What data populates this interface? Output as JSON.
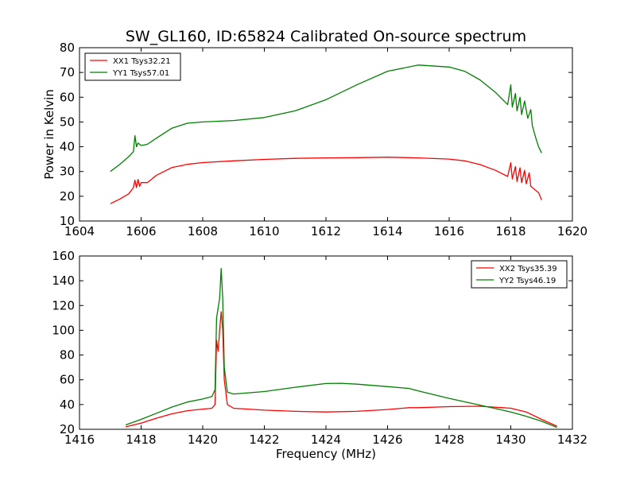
{
  "chart_data": [
    {
      "type": "line",
      "title": "SW_GL160, ID:65824 Calibrated On-source spectrum",
      "xlabel": "",
      "ylabel": "Power in Kelvin",
      "xlim": [
        1604,
        1620
      ],
      "ylim": [
        10,
        80
      ],
      "xticks": [
        1604,
        1606,
        1608,
        1610,
        1612,
        1614,
        1616,
        1618,
        1620
      ],
      "yticks": [
        10,
        20,
        30,
        40,
        50,
        60,
        70,
        80
      ],
      "legend_position": "upper-left",
      "series": [
        {
          "name": "XX1 Tsys32.21",
          "color": "#ff0000",
          "points": [
            [
              1605.0,
              17.0
            ],
            [
              1605.3,
              18.8
            ],
            [
              1605.6,
              21.0
            ],
            [
              1605.75,
              23.5
            ],
            [
              1605.8,
              26.5
            ],
            [
              1605.85,
              23.5
            ],
            [
              1605.9,
              26.8
            ],
            [
              1605.95,
              24.0
            ],
            [
              1606.0,
              25.5
            ],
            [
              1606.2,
              25.5
            ],
            [
              1606.5,
              28.5
            ],
            [
              1607.0,
              31.6
            ],
            [
              1607.5,
              32.9
            ],
            [
              1608.0,
              33.6
            ],
            [
              1609.0,
              34.3
            ],
            [
              1610.0,
              34.9
            ],
            [
              1611.0,
              35.3
            ],
            [
              1612.0,
              35.5
            ],
            [
              1613.0,
              35.6
            ],
            [
              1614.0,
              35.8
            ],
            [
              1615.0,
              35.5
            ],
            [
              1616.0,
              35.0
            ],
            [
              1616.5,
              34.3
            ],
            [
              1617.0,
              32.8
            ],
            [
              1617.5,
              30.5
            ],
            [
              1617.9,
              28.0
            ],
            [
              1618.0,
              33.5
            ],
            [
              1618.05,
              27.0
            ],
            [
              1618.15,
              32.0
            ],
            [
              1618.2,
              26.0
            ],
            [
              1618.3,
              31.5
            ],
            [
              1618.35,
              25.5
            ],
            [
              1618.45,
              30.5
            ],
            [
              1618.5,
              25.0
            ],
            [
              1618.6,
              29.5
            ],
            [
              1618.65,
              24.0
            ],
            [
              1618.8,
              22.5
            ],
            [
              1618.9,
              21.5
            ],
            [
              1619.0,
              18.5
            ]
          ]
        },
        {
          "name": "YY1 Tsys57.01",
          "color": "#008000",
          "points": [
            [
              1605.0,
              30.0
            ],
            [
              1605.3,
              32.8
            ],
            [
              1605.6,
              36.0
            ],
            [
              1605.75,
              38.0
            ],
            [
              1605.8,
              44.5
            ],
            [
              1605.85,
              40.0
            ],
            [
              1605.9,
              41.5
            ],
            [
              1606.0,
              40.5
            ],
            [
              1606.2,
              41.0
            ],
            [
              1606.5,
              43.5
            ],
            [
              1607.0,
              47.5
            ],
            [
              1607.5,
              49.5
            ],
            [
              1608.0,
              50.0
            ],
            [
              1609.0,
              50.6
            ],
            [
              1610.0,
              51.8
            ],
            [
              1611.0,
              54.5
            ],
            [
              1612.0,
              59.0
            ],
            [
              1613.0,
              65.0
            ],
            [
              1614.0,
              70.5
            ],
            [
              1615.0,
              73.0
            ],
            [
              1616.0,
              72.2
            ],
            [
              1616.5,
              70.5
            ],
            [
              1617.0,
              67.0
            ],
            [
              1617.5,
              62.0
            ],
            [
              1617.9,
              57.0
            ],
            [
              1618.0,
              65.0
            ],
            [
              1618.05,
              56.0
            ],
            [
              1618.15,
              61.5
            ],
            [
              1618.2,
              54.5
            ],
            [
              1618.3,
              60.0
            ],
            [
              1618.35,
              53.0
            ],
            [
              1618.45,
              58.5
            ],
            [
              1618.55,
              51.5
            ],
            [
              1618.65,
              55.0
            ],
            [
              1618.7,
              48.5
            ],
            [
              1618.8,
              44.0
            ],
            [
              1618.9,
              40.0
            ],
            [
              1619.0,
              37.5
            ]
          ]
        }
      ]
    },
    {
      "type": "line",
      "title": "",
      "xlabel": "Frequency (MHz)",
      "ylabel": "",
      "xlim": [
        1416,
        1432
      ],
      "ylim": [
        20,
        160
      ],
      "xticks": [
        1416,
        1418,
        1420,
        1422,
        1424,
        1426,
        1428,
        1430,
        1432
      ],
      "yticks": [
        20,
        40,
        60,
        80,
        100,
        120,
        140,
        160
      ],
      "legend_position": "upper-right",
      "series": [
        {
          "name": "XX2 Tsys35.39",
          "color": "#ff0000",
          "points": [
            [
              1417.5,
              22.0
            ],
            [
              1418.0,
              25.0
            ],
            [
              1418.5,
              29.0
            ],
            [
              1419.0,
              32.5
            ],
            [
              1419.5,
              35.0
            ],
            [
              1420.0,
              36.3
            ],
            [
              1420.3,
              37.0
            ],
            [
              1420.4,
              40.0
            ],
            [
              1420.45,
              92.0
            ],
            [
              1420.5,
              83.0
            ],
            [
              1420.55,
              100.0
            ],
            [
              1420.6,
              115.0
            ],
            [
              1420.65,
              100.0
            ],
            [
              1420.7,
              60.0
            ],
            [
              1420.8,
              40.0
            ],
            [
              1421.0,
              37.0
            ],
            [
              1422.0,
              35.5
            ],
            [
              1423.0,
              34.5
            ],
            [
              1424.0,
              34.0
            ],
            [
              1425.0,
              34.5
            ],
            [
              1426.0,
              36.0
            ],
            [
              1426.7,
              37.5
            ],
            [
              1427.0,
              37.5
            ],
            [
              1428.0,
              38.3
            ],
            [
              1429.0,
              38.6
            ],
            [
              1430.0,
              37.0
            ],
            [
              1430.5,
              34.0
            ],
            [
              1431.0,
              28.0
            ],
            [
              1431.5,
              22.5
            ]
          ]
        },
        {
          "name": "YY2 Tsys46.19",
          "color": "#008000",
          "points": [
            [
              1417.5,
              23.5
            ],
            [
              1418.0,
              28.0
            ],
            [
              1418.5,
              33.0
            ],
            [
              1419.0,
              38.0
            ],
            [
              1419.5,
              42.0
            ],
            [
              1420.0,
              44.5
            ],
            [
              1420.3,
              46.5
            ],
            [
              1420.4,
              52.0
            ],
            [
              1420.45,
              110.0
            ],
            [
              1420.5,
              118.0
            ],
            [
              1420.55,
              126.0
            ],
            [
              1420.6,
              150.0
            ],
            [
              1420.65,
              125.0
            ],
            [
              1420.7,
              70.0
            ],
            [
              1420.8,
              50.0
            ],
            [
              1421.0,
              48.5
            ],
            [
              1422.0,
              50.5
            ],
            [
              1423.0,
              54.0
            ],
            [
              1424.0,
              57.0
            ],
            [
              1424.5,
              57.2
            ],
            [
              1425.0,
              56.5
            ],
            [
              1426.0,
              54.5
            ],
            [
              1426.7,
              53.0
            ],
            [
              1427.0,
              51.0
            ],
            [
              1428.0,
              45.0
            ],
            [
              1429.0,
              39.5
            ],
            [
              1430.0,
              34.0
            ],
            [
              1430.5,
              30.5
            ],
            [
              1431.0,
              26.5
            ],
            [
              1431.5,
              21.5
            ]
          ]
        }
      ]
    }
  ]
}
